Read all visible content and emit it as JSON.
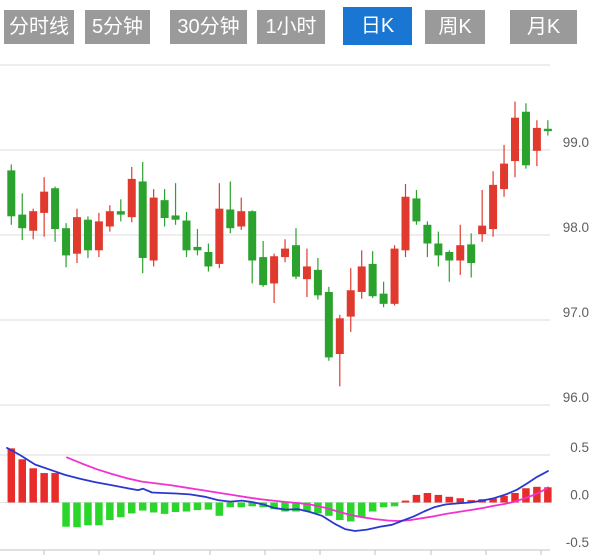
{
  "tabs": {
    "items": [
      {
        "label": "分时线",
        "selected": false
      },
      {
        "label": "5分钟",
        "selected": false
      },
      {
        "label": "30分钟",
        "selected": false
      },
      {
        "label": "1小时",
        "selected": false
      },
      {
        "label": "日K",
        "selected": true
      },
      {
        "label": "周K",
        "selected": false
      },
      {
        "label": "月K",
        "selected": false
      }
    ],
    "colors": {
      "inactive_bg": "#9a9a9a",
      "active_bg": "#1976d2",
      "text": "#ffffff"
    }
  },
  "chart_data": {
    "type": "candlestick+macd",
    "title": "",
    "price_axis": {
      "labels": [
        "99.0",
        "98.0",
        "97.0",
        "96.0"
      ],
      "values": [
        99.0,
        98.0,
        97.0,
        96.0
      ],
      "min": 96.0,
      "max": 100.0,
      "grid": true,
      "legend_position": "right"
    },
    "indicator_axis": {
      "labels": [
        "0.5",
        "0.0",
        "-0.5"
      ],
      "values": [
        0.5,
        0.0,
        -0.5
      ],
      "min": -0.5,
      "max": 0.5
    },
    "candles_ohlc": [
      [
        98.76,
        98.83,
        98.12,
        98.22
      ],
      [
        98.24,
        98.49,
        97.94,
        98.08
      ],
      [
        98.05,
        98.31,
        97.95,
        98.28
      ],
      [
        98.26,
        98.68,
        97.98,
        98.51
      ],
      [
        98.55,
        98.57,
        97.92,
        98.07
      ],
      [
        98.08,
        98.14,
        97.62,
        97.76
      ],
      [
        97.78,
        98.31,
        97.67,
        98.21
      ],
      [
        98.18,
        98.22,
        97.73,
        97.82
      ],
      [
        97.82,
        98.26,
        97.74,
        98.16
      ],
      [
        98.1,
        98.35,
        98.04,
        98.28
      ],
      [
        98.28,
        98.42,
        98.16,
        98.24
      ],
      [
        98.21,
        98.8,
        98.15,
        98.66
      ],
      [
        98.63,
        98.86,
        97.55,
        97.73
      ],
      [
        97.7,
        98.54,
        97.63,
        98.44
      ],
      [
        98.41,
        98.54,
        98.1,
        98.2
      ],
      [
        98.23,
        98.61,
        98.12,
        98.18
      ],
      [
        98.17,
        98.27,
        97.74,
        97.82
      ],
      [
        97.86,
        98.07,
        97.76,
        97.82
      ],
      [
        97.8,
        97.9,
        97.57,
        97.63
      ],
      [
        97.66,
        98.61,
        97.61,
        98.31
      ],
      [
        98.3,
        98.63,
        98.02,
        98.08
      ],
      [
        98.1,
        98.44,
        98.06,
        98.28
      ],
      [
        98.28,
        98.29,
        97.43,
        97.7
      ],
      [
        97.74,
        97.93,
        97.39,
        97.41
      ],
      [
        97.43,
        97.78,
        97.2,
        97.75
      ],
      [
        97.74,
        97.95,
        97.68,
        97.84
      ],
      [
        97.88,
        98.08,
        97.48,
        97.51
      ],
      [
        97.48,
        97.84,
        97.27,
        97.63
      ],
      [
        97.59,
        97.73,
        97.24,
        97.29
      ],
      [
        97.33,
        97.39,
        96.52,
        96.56
      ],
      [
        96.6,
        97.06,
        96.22,
        97.02
      ],
      [
        97.04,
        97.61,
        96.86,
        97.35
      ],
      [
        97.33,
        97.82,
        97.25,
        97.63
      ],
      [
        97.66,
        97.81,
        97.26,
        97.28
      ],
      [
        97.31,
        97.45,
        97.15,
        97.19
      ],
      [
        97.19,
        97.88,
        97.17,
        97.84
      ],
      [
        97.82,
        98.6,
        97.74,
        98.45
      ],
      [
        98.43,
        98.53,
        98.12,
        98.16
      ],
      [
        98.12,
        98.16,
        97.74,
        97.9
      ],
      [
        97.9,
        98.04,
        97.63,
        97.76
      ],
      [
        97.8,
        97.82,
        97.45,
        97.7
      ],
      [
        97.7,
        98.12,
        97.53,
        97.88
      ],
      [
        97.89,
        98.02,
        97.5,
        97.67
      ],
      [
        98.01,
        98.53,
        97.92,
        98.11
      ],
      [
        98.07,
        98.75,
        97.98,
        98.59
      ],
      [
        98.54,
        99.06,
        98.45,
        98.84
      ],
      [
        98.87,
        99.57,
        98.68,
        99.38
      ],
      [
        99.45,
        99.55,
        98.78,
        98.82
      ],
      [
        98.99,
        99.35,
        98.81,
        99.26
      ],
      [
        99.25,
        99.35,
        99.17,
        99.24
      ]
    ],
    "macd": {
      "histogram": [
        0.57,
        0.455,
        0.36,
        0.31,
        0.31,
        -0.255,
        -0.26,
        -0.24,
        -0.24,
        -0.185,
        -0.155,
        -0.115,
        -0.085,
        -0.105,
        -0.12,
        -0.1,
        -0.095,
        -0.08,
        -0.075,
        -0.14,
        -0.05,
        -0.05,
        -0.04,
        -0.05,
        -0.07,
        -0.095,
        -0.095,
        -0.095,
        -0.115,
        -0.14,
        -0.185,
        -0.2,
        -0.155,
        -0.095,
        -0.05,
        -0.04,
        0.02,
        0.08,
        0.1,
        0.08,
        0.06,
        0.045,
        0.025,
        0.035,
        0.045,
        0.07,
        0.1,
        0.15,
        0.165,
        0.16
      ],
      "dif_points": [
        [
          7,
          0.575
        ],
        [
          20,
          0.5
        ],
        [
          35,
          0.4
        ],
        [
          50,
          0.345
        ],
        [
          65,
          0.29
        ],
        [
          80,
          0.25
        ],
        [
          95,
          0.215
        ],
        [
          110,
          0.185
        ],
        [
          125,
          0.155
        ],
        [
          138,
          0.13
        ],
        [
          143,
          0.145
        ],
        [
          152,
          0.105
        ],
        [
          163,
          0.1
        ],
        [
          176,
          0.095
        ],
        [
          190,
          0.085
        ],
        [
          205,
          0.06
        ],
        [
          218,
          0.025
        ],
        [
          230,
          0.01
        ],
        [
          242,
          0.02
        ],
        [
          252,
          0.005
        ],
        [
          263,
          -0.02
        ],
        [
          275,
          -0.06
        ],
        [
          286,
          -0.075
        ],
        [
          298,
          -0.07
        ],
        [
          310,
          -0.1
        ],
        [
          322,
          -0.14
        ],
        [
          334,
          -0.22
        ],
        [
          345,
          -0.28
        ],
        [
          355,
          -0.3
        ],
        [
          367,
          -0.285
        ],
        [
          380,
          -0.255
        ],
        [
          392,
          -0.235
        ],
        [
          403,
          -0.19
        ],
        [
          414,
          -0.145
        ],
        [
          424,
          -0.095
        ],
        [
          434,
          -0.05
        ],
        [
          446,
          -0.02
        ],
        [
          458,
          -0.01
        ],
        [
          470,
          0.0
        ],
        [
          482,
          0.02
        ],
        [
          494,
          0.045
        ],
        [
          506,
          0.085
        ],
        [
          517,
          0.135
        ],
        [
          527,
          0.2
        ],
        [
          537,
          0.27
        ],
        [
          548,
          0.33
        ]
      ],
      "dea_points": [
        [
          67,
          0.475
        ],
        [
          82,
          0.41
        ],
        [
          97,
          0.35
        ],
        [
          112,
          0.3
        ],
        [
          127,
          0.255
        ],
        [
          142,
          0.22
        ],
        [
          157,
          0.2
        ],
        [
          172,
          0.18
        ],
        [
          187,
          0.155
        ],
        [
          202,
          0.13
        ],
        [
          217,
          0.105
        ],
        [
          232,
          0.08
        ],
        [
          247,
          0.055
        ],
        [
          260,
          0.035
        ],
        [
          273,
          0.02
        ],
        [
          286,
          0.005
        ],
        [
          298,
          -0.005
        ],
        [
          312,
          -0.025
        ],
        [
          325,
          -0.055
        ],
        [
          338,
          -0.095
        ],
        [
          350,
          -0.13
        ],
        [
          362,
          -0.155
        ],
        [
          375,
          -0.175
        ],
        [
          388,
          -0.19
        ],
        [
          398,
          -0.195
        ],
        [
          410,
          -0.185
        ],
        [
          422,
          -0.165
        ],
        [
          434,
          -0.145
        ],
        [
          446,
          -0.12
        ],
        [
          458,
          -0.1
        ],
        [
          470,
          -0.08
        ],
        [
          482,
          -0.06
        ],
        [
          494,
          -0.035
        ],
        [
          505,
          -0.015
        ],
        [
          515,
          0.01
        ],
        [
          525,
          0.045
        ],
        [
          534,
          0.08
        ],
        [
          542,
          0.12
        ],
        [
          548,
          0.16
        ]
      ]
    },
    "colors": {
      "up_candle": "#e03a2e",
      "down_candle": "#2aa22d",
      "hist_up": "#e82c2c",
      "hist_down": "#2bd62b",
      "dif_line": "#2b38d0",
      "dea_line": "#f032d2",
      "grid_line": "#dcdcdc",
      "axis_line": "#c0c0c0",
      "label_text": "#5f5f5f"
    }
  }
}
